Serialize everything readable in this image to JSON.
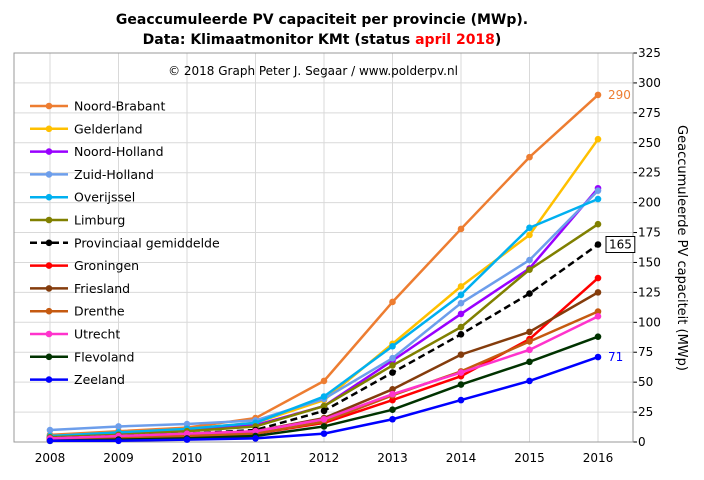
{
  "chart_data": {
    "type": "line",
    "title_line1": "Geaccumuleerde PV capaciteit per provincie (MWp).",
    "title_line2_prefix": "Data: Klimaatmonitor KMt (status ",
    "title_line2_highlight": "april 2018",
    "title_line2_suffix": ")",
    "title_highlight_color": "#ff0000",
    "copyright": "© 2018 Graph Peter J. Segaar / www.polderpv.nl",
    "ylabel": "Geaccumuleerde PV capaciteit (MWp)",
    "y_axis_side": "right",
    "ylim": [
      0,
      325
    ],
    "yticks": [
      "0",
      "25",
      "50",
      "75",
      "100",
      "125",
      "150",
      "175",
      "200",
      "225",
      "250",
      "275",
      "300",
      "325"
    ],
    "x": [
      "2008",
      "2009",
      "2010",
      "2011",
      "2012",
      "2013",
      "2014",
      "2015",
      "2016"
    ],
    "grid": true,
    "legend_position": "top-left inside",
    "annotations": [
      {
        "text": "290",
        "series": "Noord-Brabant",
        "color": "#ed7d31",
        "boxed": false
      },
      {
        "text": "165",
        "series": "Provinciaal gemiddelde",
        "color": "#000000",
        "boxed": true
      },
      {
        "text": "71",
        "series": "Zeeland",
        "color": "#0000ff",
        "boxed": false
      }
    ],
    "series": [
      {
        "name": "Noord-Brabant",
        "color": "#ed7d31",
        "dash": false,
        "values": [
          6,
          9,
          12,
          20,
          51,
          117,
          178,
          238,
          290
        ]
      },
      {
        "name": "Gelderland",
        "color": "#ffc000",
        "dash": false,
        "values": [
          5,
          8,
          11,
          16,
          35,
          82,
          130,
          173,
          253
        ]
      },
      {
        "name": "Noord-Holland",
        "color": "#9900ff",
        "dash": false,
        "values": [
          4,
          7,
          10,
          14,
          30,
          68,
          107,
          145,
          212
        ]
      },
      {
        "name": "Zuid-Holland",
        "color": "#6d9eeb",
        "dash": false,
        "values": [
          10,
          13,
          15,
          18,
          36,
          70,
          116,
          152,
          210
        ]
      },
      {
        "name": "Overijssel",
        "color": "#00b0f0",
        "dash": false,
        "values": [
          5,
          8,
          11,
          16,
          38,
          80,
          123,
          179,
          203
        ]
      },
      {
        "name": "Limburg",
        "color": "#808000",
        "dash": false,
        "values": [
          4,
          6,
          9,
          13,
          30,
          64,
          96,
          144,
          182
        ]
      },
      {
        "name": "Provinciaal gemiddelde",
        "color": "#000000",
        "dash": true,
        "values": [
          3,
          5,
          7,
          10,
          26,
          58,
          90,
          124,
          165
        ]
      },
      {
        "name": "Groningen",
        "color": "#ff0000",
        "dash": false,
        "values": [
          2,
          3,
          4,
          7,
          16,
          35,
          55,
          86,
          137
        ]
      },
      {
        "name": "Friesland",
        "color": "#843c0c",
        "dash": false,
        "values": [
          3,
          4,
          6,
          9,
          20,
          44,
          73,
          92,
          125
        ]
      },
      {
        "name": "Drenthe",
        "color": "#c55a11",
        "dash": false,
        "values": [
          2,
          3,
          5,
          7,
          17,
          39,
          59,
          84,
          109
        ]
      },
      {
        "name": "Utrecht",
        "color": "#ff33cc",
        "dash": false,
        "values": [
          3,
          5,
          7,
          9,
          19,
          40,
          58,
          77,
          105
        ]
      },
      {
        "name": "Flevoland",
        "color": "#003300",
        "dash": false,
        "values": [
          1,
          2,
          3,
          5,
          13,
          27,
          48,
          67,
          88
        ]
      },
      {
        "name": "Zeeland",
        "color": "#0000ff",
        "dash": false,
        "values": [
          1,
          1,
          2,
          3,
          7,
          19,
          35,
          51,
          71
        ]
      }
    ]
  }
}
